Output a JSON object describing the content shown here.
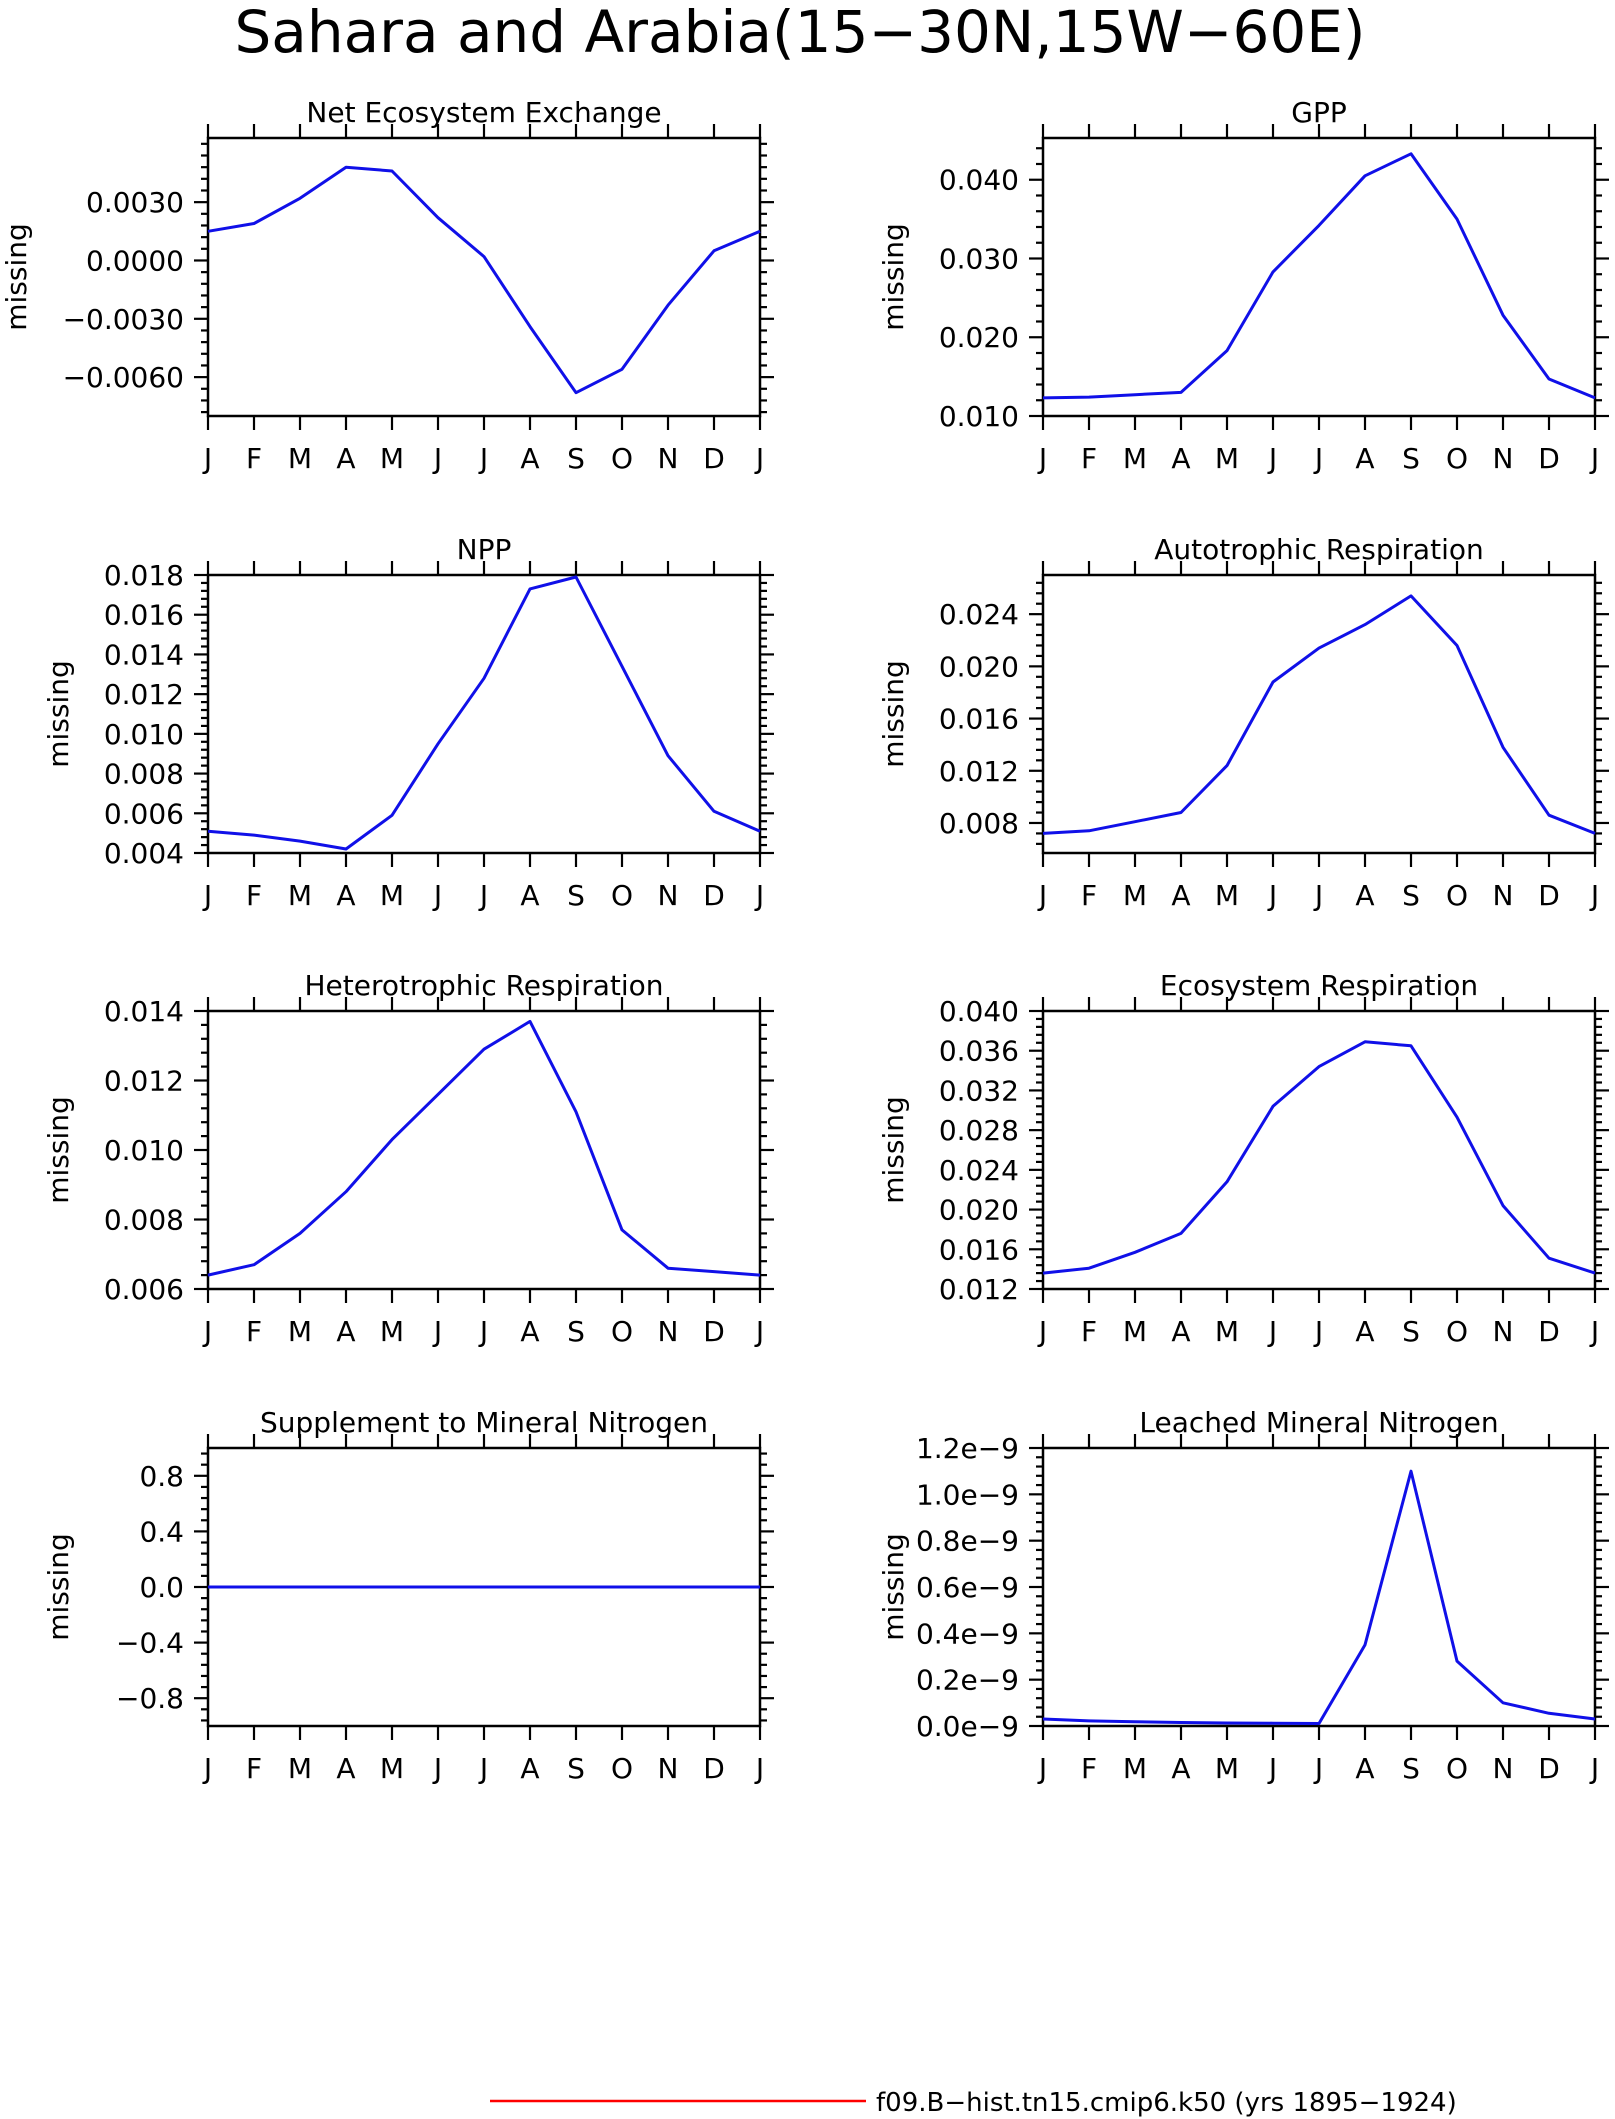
{
  "page": {
    "title": "Sahara and Arabia(15−30N,15W−60E)",
    "legend": {
      "label": "f09.B−hist.tn15.cmip6.k50 (yrs 1895−1924)",
      "color": "#ff0000"
    }
  },
  "chart_data": [
    {
      "type": "line",
      "title": "Net Ecosystem Exchange",
      "ylabel": "missing",
      "categories": [
        "J",
        "F",
        "M",
        "A",
        "M",
        "J",
        "J",
        "A",
        "S",
        "O",
        "N",
        "D",
        "J"
      ],
      "ylim": [
        -0.008,
        0.0063
      ],
      "yticks": [
        -0.006,
        -0.003,
        0.0,
        0.003
      ],
      "ytick_labels": [
        "−0.0060",
        "−0.0030",
        "0.0000",
        "0.0030"
      ],
      "series": [
        {
          "color": "#1010e8",
          "values": [
            0.0015,
            0.0019,
            0.0032,
            0.0048,
            0.0046,
            0.0022,
            0.0002,
            -0.0034,
            -0.0068,
            -0.0056,
            -0.0023,
            0.0005,
            0.0015
          ]
        }
      ]
    },
    {
      "type": "line",
      "title": "GPP",
      "ylabel": "missing",
      "categories": [
        "J",
        "F",
        "M",
        "A",
        "M",
        "J",
        "J",
        "A",
        "S",
        "O",
        "N",
        "D",
        "J"
      ],
      "ylim": [
        0.01,
        0.0453
      ],
      "yticks": [
        0.01,
        0.02,
        0.03,
        0.04
      ],
      "ytick_labels": [
        "0.010",
        "0.020",
        "0.030",
        "0.040"
      ],
      "series": [
        {
          "color": "#1010e8",
          "values": [
            0.0123,
            0.0124,
            0.0127,
            0.013,
            0.0183,
            0.0283,
            0.0342,
            0.0405,
            0.0433,
            0.035,
            0.0228,
            0.0147,
            0.0123
          ]
        }
      ]
    },
    {
      "type": "line",
      "title": "NPP",
      "ylabel": "missing",
      "categories": [
        "J",
        "F",
        "M",
        "A",
        "M",
        "J",
        "J",
        "A",
        "S",
        "O",
        "N",
        "D",
        "J"
      ],
      "ylim": [
        0.004,
        0.018
      ],
      "yticks": [
        0.004,
        0.006,
        0.008,
        0.01,
        0.012,
        0.014,
        0.016,
        0.018
      ],
      "ytick_labels": [
        "0.004",
        "0.006",
        "0.008",
        "0.010",
        "0.012",
        "0.014",
        "0.016",
        "0.018"
      ],
      "series": [
        {
          "color": "#1010e8",
          "values": [
            0.0051,
            0.0049,
            0.0046,
            0.0042,
            0.0059,
            0.0095,
            0.0128,
            0.0173,
            0.0179,
            0.0134,
            0.0089,
            0.0061,
            0.0051
          ]
        }
      ]
    },
    {
      "type": "line",
      "title": "Autotrophic Respiration",
      "ylabel": "missing",
      "categories": [
        "J",
        "F",
        "M",
        "A",
        "M",
        "J",
        "J",
        "A",
        "S",
        "O",
        "N",
        "D",
        "J"
      ],
      "ylim": [
        0.0057,
        0.027
      ],
      "yticks": [
        0.008,
        0.012,
        0.016,
        0.02,
        0.024
      ],
      "ytick_labels": [
        "0.008",
        "0.012",
        "0.016",
        "0.020",
        "0.024"
      ],
      "series": [
        {
          "color": "#1010e8",
          "values": [
            0.0072,
            0.0074,
            0.0081,
            0.0088,
            0.0124,
            0.0188,
            0.0214,
            0.0232,
            0.0254,
            0.0216,
            0.0138,
            0.0086,
            0.0072
          ]
        }
      ]
    },
    {
      "type": "line",
      "title": "Heterotrophic Respiration",
      "ylabel": "missing",
      "categories": [
        "J",
        "F",
        "M",
        "A",
        "M",
        "J",
        "J",
        "A",
        "S",
        "O",
        "N",
        "D",
        "J"
      ],
      "ylim": [
        0.006,
        0.014
      ],
      "yticks": [
        0.006,
        0.008,
        0.01,
        0.012,
        0.014
      ],
      "ytick_labels": [
        "0.006",
        "0.008",
        "0.010",
        "0.012",
        "0.014"
      ],
      "series": [
        {
          "color": "#1010e8",
          "values": [
            0.0064,
            0.0067,
            0.0076,
            0.0088,
            0.0103,
            0.0116,
            0.0129,
            0.0137,
            0.0111,
            0.0077,
            0.0066,
            0.0065,
            0.0064
          ]
        }
      ]
    },
    {
      "type": "line",
      "title": "Ecosystem Respiration",
      "ylabel": "missing",
      "categories": [
        "J",
        "F",
        "M",
        "A",
        "M",
        "J",
        "J",
        "A",
        "S",
        "O",
        "N",
        "D",
        "J"
      ],
      "ylim": [
        0.012,
        0.04
      ],
      "yticks": [
        0.012,
        0.016,
        0.02,
        0.024,
        0.028,
        0.032,
        0.036,
        0.04
      ],
      "ytick_labels": [
        "0.012",
        "0.016",
        "0.020",
        "0.024",
        "0.028",
        "0.032",
        "0.036",
        "0.040"
      ],
      "series": [
        {
          "color": "#1010e8",
          "values": [
            0.0136,
            0.0141,
            0.0157,
            0.0176,
            0.0228,
            0.0304,
            0.0344,
            0.0369,
            0.0365,
            0.0293,
            0.0204,
            0.0151,
            0.0136
          ]
        }
      ]
    },
    {
      "type": "line",
      "title": "Supplement to Mineral Nitrogen",
      "ylabel": "missing",
      "categories": [
        "J",
        "F",
        "M",
        "A",
        "M",
        "J",
        "J",
        "A",
        "S",
        "O",
        "N",
        "D",
        "J"
      ],
      "ylim": [
        -1.0,
        1.0
      ],
      "yticks": [
        -0.8,
        -0.4,
        0.0,
        0.4,
        0.8
      ],
      "ytick_labels": [
        "−0.8",
        "−0.4",
        "0.0",
        "0.4",
        "0.8"
      ],
      "series": [
        {
          "color": "#1010e8",
          "values": [
            0,
            0,
            0,
            0,
            0,
            0,
            0,
            0,
            0,
            0,
            0,
            0,
            0
          ]
        }
      ]
    },
    {
      "type": "line",
      "title": "Leached Mineral Nitrogen",
      "ylabel": "missing",
      "categories": [
        "J",
        "F",
        "M",
        "A",
        "M",
        "J",
        "J",
        "A",
        "S",
        "O",
        "N",
        "D",
        "J"
      ],
      "ylim": [
        0,
        1.2e-09
      ],
      "yticks": [
        0,
        2e-10,
        4e-10,
        6e-10,
        8e-10,
        1e-09,
        1.2e-09
      ],
      "ytick_labels": [
        "0.0e−9",
        "0.2e−9",
        "0.4e−9",
        "0.6e−9",
        "0.8e−9",
        "1.0e−9",
        "1.2e−9"
      ],
      "series": [
        {
          "color": "#1010e8",
          "values": [
            3e-11,
            2.2e-11,
            1.8e-11,
            1.5e-11,
            1.3e-11,
            1.2e-11,
            1.1e-11,
            3.5e-10,
            1.1e-09,
            2.8e-10,
            1e-10,
            5.5e-11,
            3e-11
          ]
        }
      ]
    }
  ]
}
